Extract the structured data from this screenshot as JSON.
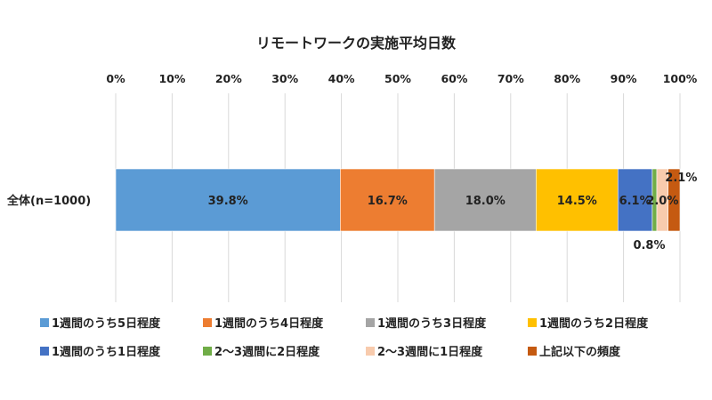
{
  "chart_data": {
    "type": "bar",
    "orientation": "horizontal",
    "stacked": true,
    "title": "リモートワークの実施平均日数",
    "xlim": [
      0,
      100
    ],
    "xticks": [
      "0%",
      "10%",
      "20%",
      "30%",
      "40%",
      "50%",
      "60%",
      "70%",
      "80%",
      "90%",
      "100%"
    ],
    "grid": true,
    "legend_position": "bottom",
    "categories": [
      "全体(n=1000)"
    ],
    "series": [
      {
        "name": "1週間のうち5日程度",
        "values": [
          39.8
        ],
        "color": "#5b9bd5",
        "label": "39.8%"
      },
      {
        "name": "1週間のうち4日程度",
        "values": [
          16.7
        ],
        "color": "#ed7d31",
        "label": "16.7%"
      },
      {
        "name": "1週間のうち3日程度",
        "values": [
          18.0
        ],
        "color": "#a5a5a5",
        "label": "18.0%"
      },
      {
        "name": "1週間のうち2日程度",
        "values": [
          14.5
        ],
        "color": "#ffc000",
        "label": "14.5%"
      },
      {
        "name": "1週間のうち1日程度",
        "values": [
          6.1
        ],
        "color": "#4472c4",
        "label": "6.1%"
      },
      {
        "name": "2～3週間に2日程度",
        "values": [
          0.8
        ],
        "color": "#70ad47",
        "label": "0.8%"
      },
      {
        "name": "2～3週間に1日程度",
        "values": [
          2.0
        ],
        "color": "#f8cbad",
        "label": "2.0%"
      },
      {
        "name": "上記以下の頻度",
        "values": [
          2.1
        ],
        "color": "#c55a11",
        "label": "2.1%"
      }
    ]
  }
}
